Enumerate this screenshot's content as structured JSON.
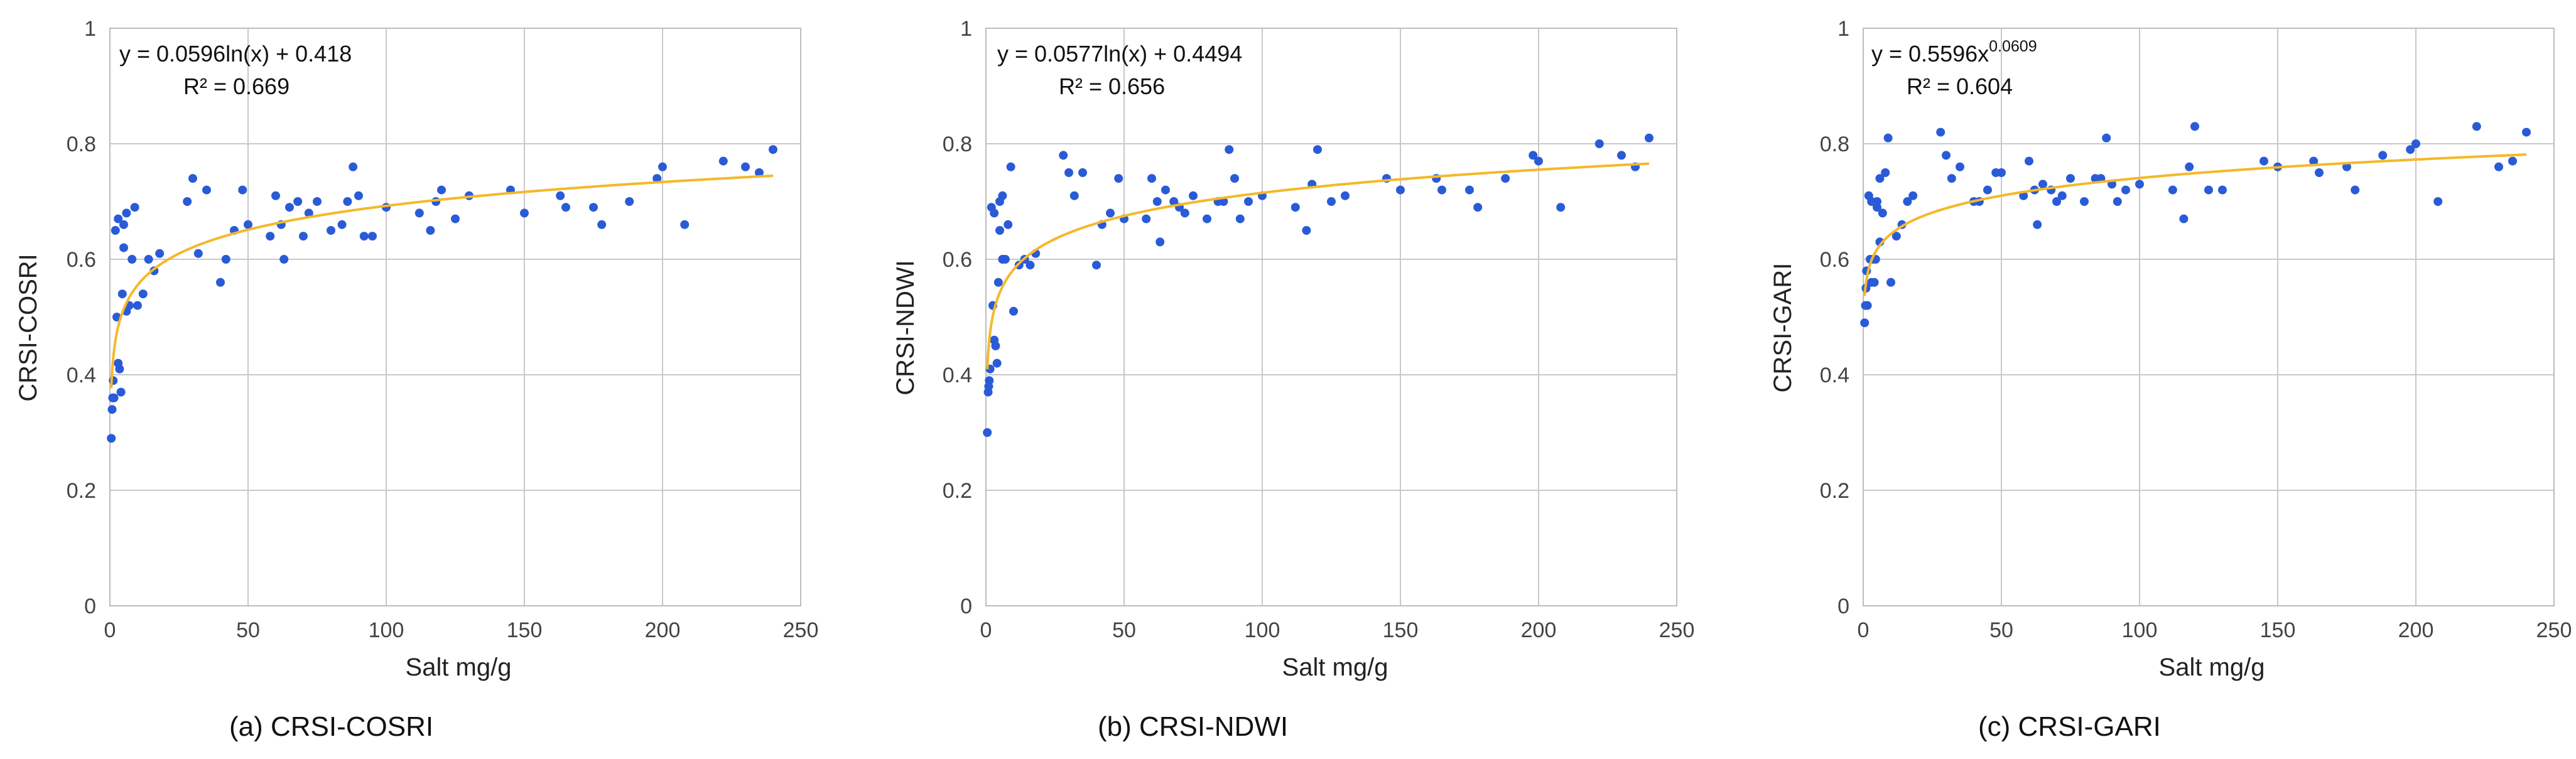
{
  "chart_data": [
    {
      "id": "a",
      "type": "scatter",
      "caption": "(a) CRSI-COSRI",
      "xlabel": "Salt mg/g",
      "ylabel": "CRSI-COSRI",
      "xlim": [
        0,
        250
      ],
      "ylim": [
        0,
        1
      ],
      "xticks": [
        "0",
        "50",
        "100",
        "150",
        "200",
        "250"
      ],
      "yticks": [
        "0",
        "0.2",
        "0.4",
        "0.6",
        "0.8",
        "1"
      ],
      "grid": true,
      "legend": "none",
      "point_color": "#2a5bd7",
      "trend_color": "#f4b829",
      "trendline": {
        "kind": "log",
        "a": 0.0596,
        "b": 0.418
      },
      "equation_text": "y = 0.0596ln(x) + 0.418",
      "r2_text": "R² = 0.669",
      "x": [
        0.5,
        0.8,
        1,
        1.2,
        1.5,
        2,
        2.5,
        3,
        3,
        3.5,
        4,
        4.5,
        5,
        5,
        6,
        6,
        7,
        8,
        9,
        10,
        12,
        14,
        16,
        18,
        28,
        30,
        32,
        35,
        40,
        42,
        45,
        48,
        50,
        58,
        60,
        62,
        63,
        65,
        68,
        70,
        72,
        75,
        80,
        84,
        86,
        88,
        90,
        92,
        95,
        100,
        112,
        116,
        118,
        120,
        125,
        130,
        145,
        150,
        163,
        165,
        175,
        178,
        188,
        198,
        200,
        208,
        222,
        230,
        235,
        240
      ],
      "y": [
        0.29,
        0.34,
        0.36,
        0.39,
        0.36,
        0.65,
        0.5,
        0.42,
        0.67,
        0.41,
        0.37,
        0.54,
        0.66,
        0.62,
        0.51,
        0.68,
        0.52,
        0.6,
        0.69,
        0.52,
        0.54,
        0.6,
        0.58,
        0.61,
        0.7,
        0.74,
        0.61,
        0.72,
        0.56,
        0.6,
        0.65,
        0.72,
        0.66,
        0.64,
        0.71,
        0.66,
        0.6,
        0.69,
        0.7,
        0.64,
        0.68,
        0.7,
        0.65,
        0.66,
        0.7,
        0.76,
        0.71,
        0.64,
        0.64,
        0.69,
        0.68,
        0.65,
        0.7,
        0.72,
        0.67,
        0.71,
        0.72,
        0.68,
        0.71,
        0.69,
        0.69,
        0.66,
        0.7,
        0.74,
        0.76,
        0.66,
        0.77,
        0.76,
        0.75,
        0.79
      ]
    },
    {
      "id": "b",
      "type": "scatter",
      "caption": "(b) CRSI-NDWI",
      "xlabel": "Salt mg/g",
      "ylabel": "CRSI-NDWI",
      "xlim": [
        0,
        250
      ],
      "ylim": [
        0,
        1
      ],
      "xticks": [
        "0",
        "50",
        "100",
        "150",
        "200",
        "250"
      ],
      "yticks": [
        "0",
        "0.2",
        "0.4",
        "0.6",
        "0.8",
        "1"
      ],
      "grid": true,
      "legend": "none",
      "point_color": "#2a5bd7",
      "trend_color": "#f4b829",
      "trendline": {
        "kind": "log",
        "a": 0.0577,
        "b": 0.4494
      },
      "equation_text": "y = 0.0577ln(x) + 0.4494",
      "r2_text": "R² = 0.656",
      "x": [
        0.5,
        0.8,
        1,
        1.2,
        1.5,
        2,
        2.5,
        3,
        3,
        3.5,
        4,
        4.5,
        5,
        5,
        6,
        6,
        7,
        8,
        9,
        10,
        12,
        14,
        16,
        18,
        28,
        30,
        32,
        35,
        40,
        42,
        45,
        48,
        50,
        58,
        60,
        62,
        63,
        65,
        68,
        70,
        72,
        75,
        80,
        84,
        86,
        88,
        90,
        92,
        95,
        100,
        112,
        116,
        118,
        120,
        125,
        130,
        145,
        150,
        163,
        165,
        175,
        178,
        188,
        198,
        200,
        208,
        222,
        230,
        235,
        240
      ],
      "y": [
        0.3,
        0.37,
        0.38,
        0.39,
        0.41,
        0.69,
        0.52,
        0.46,
        0.68,
        0.45,
        0.42,
        0.56,
        0.7,
        0.65,
        0.6,
        0.71,
        0.6,
        0.66,
        0.76,
        0.51,
        0.59,
        0.6,
        0.59,
        0.61,
        0.78,
        0.75,
        0.71,
        0.75,
        0.59,
        0.66,
        0.68,
        0.74,
        0.67,
        0.67,
        0.74,
        0.7,
        0.63,
        0.72,
        0.7,
        0.69,
        0.68,
        0.71,
        0.67,
        0.7,
        0.7,
        0.79,
        0.74,
        0.67,
        0.7,
        0.71,
        0.69,
        0.65,
        0.73,
        0.79,
        0.7,
        0.71,
        0.74,
        0.72,
        0.74,
        0.72,
        0.72,
        0.69,
        0.74,
        0.78,
        0.77,
        0.69,
        0.8,
        0.78,
        0.76,
        0.81
      ]
    },
    {
      "id": "c",
      "type": "scatter",
      "caption": "(c) CRSI-GARI",
      "xlabel": "Salt mg/g",
      "ylabel": "CRSI-GARI",
      "xlim": [
        0,
        250
      ],
      "ylim": [
        0,
        1
      ],
      "xticks": [
        "0",
        "50",
        "100",
        "150",
        "200",
        "250"
      ],
      "yticks": [
        "0",
        "0.2",
        "0.4",
        "0.6",
        "0.8",
        "1"
      ],
      "grid": true,
      "legend": "none",
      "point_color": "#2a5bd7",
      "trend_color": "#f4b829",
      "trendline": {
        "kind": "power",
        "a": 0.5596,
        "b": 0.0609
      },
      "equation_base": "y = 0.5596x",
      "equation_exponent": "0.0609",
      "r2_text": "R² = 0.604",
      "x": [
        0.5,
        0.8,
        1,
        1.2,
        1.5,
        2,
        2.5,
        3,
        3,
        3.5,
        4,
        4.5,
        5,
        5,
        6,
        6,
        7,
        8,
        9,
        10,
        12,
        14,
        16,
        18,
        28,
        30,
        32,
        35,
        40,
        42,
        45,
        48,
        50,
        58,
        60,
        62,
        63,
        65,
        68,
        70,
        72,
        75,
        80,
        84,
        86,
        88,
        90,
        92,
        95,
        100,
        112,
        116,
        118,
        120,
        125,
        130,
        145,
        150,
        163,
        165,
        175,
        178,
        188,
        198,
        200,
        208,
        222,
        230,
        235,
        240
      ],
      "y": [
        0.49,
        0.52,
        0.55,
        0.58,
        0.52,
        0.71,
        0.6,
        0.56,
        0.7,
        0.6,
        0.56,
        0.6,
        0.69,
        0.7,
        0.63,
        0.74,
        0.68,
        0.75,
        0.81,
        0.56,
        0.64,
        0.66,
        0.7,
        0.71,
        0.82,
        0.78,
        0.74,
        0.76,
        0.7,
        0.7,
        0.72,
        0.75,
        0.75,
        0.71,
        0.77,
        0.72,
        0.66,
        0.73,
        0.72,
        0.7,
        0.71,
        0.74,
        0.7,
        0.74,
        0.74,
        0.81,
        0.73,
        0.7,
        0.72,
        0.73,
        0.72,
        0.67,
        0.76,
        0.83,
        0.72,
        0.72,
        0.77,
        0.76,
        0.77,
        0.75,
        0.76,
        0.72,
        0.78,
        0.79,
        0.8,
        0.7,
        0.83,
        0.76,
        0.77,
        0.82
      ]
    }
  ]
}
